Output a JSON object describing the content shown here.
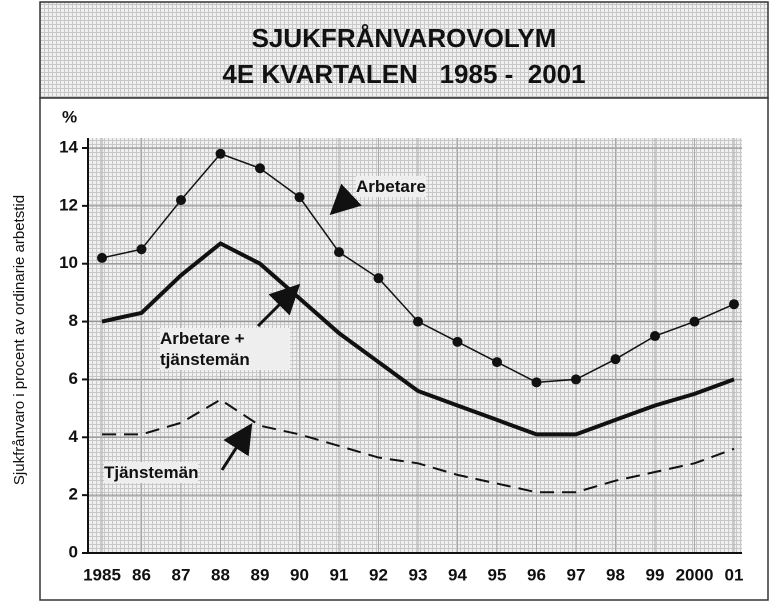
{
  "chart_data": {
    "type": "line",
    "title": "SJUKFRÅNVAROVOLYM",
    "subtitle": "4E KVARTALEN   1985 -  2001",
    "y_label": "Sjukfrånvaro i procent av ordinarie arbetstid",
    "y_unit": "%",
    "categories": [
      "1985",
      "86",
      "87",
      "88",
      "89",
      "90",
      "91",
      "92",
      "93",
      "94",
      "95",
      "96",
      "97",
      "98",
      "99",
      "2000",
      "01"
    ],
    "ylim": [
      0,
      14
    ],
    "yticks": [
      0,
      2,
      4,
      6,
      8,
      10,
      12,
      14
    ],
    "grid": true,
    "series": [
      {
        "name": "Arbetare",
        "color": "#111111",
        "line_width": 1.5,
        "dashed": false,
        "markers": true,
        "values": [
          10.2,
          10.5,
          12.2,
          13.8,
          13.3,
          12.3,
          10.4,
          9.5,
          8.0,
          7.3,
          6.6,
          5.9,
          6.0,
          6.7,
          7.5,
          8.0,
          8.6
        ]
      },
      {
        "name": "Arbetare + tjänstemän",
        "color": "#111111",
        "line_width": 4,
        "dashed": false,
        "markers": false,
        "values": [
          8.0,
          8.3,
          9.6,
          10.7,
          10.0,
          8.8,
          7.6,
          6.6,
          5.6,
          5.1,
          4.6,
          4.1,
          4.1,
          4.6,
          5.1,
          5.5,
          6.0
        ]
      },
      {
        "name": "Tjänstemän",
        "color": "#111111",
        "line_width": 2,
        "dashed": true,
        "markers": false,
        "values": [
          4.1,
          4.1,
          4.5,
          5.3,
          4.4,
          4.1,
          3.7,
          3.3,
          3.1,
          2.7,
          2.4,
          2.1,
          2.1,
          2.5,
          2.8,
          3.1,
          3.6
        ]
      }
    ]
  }
}
